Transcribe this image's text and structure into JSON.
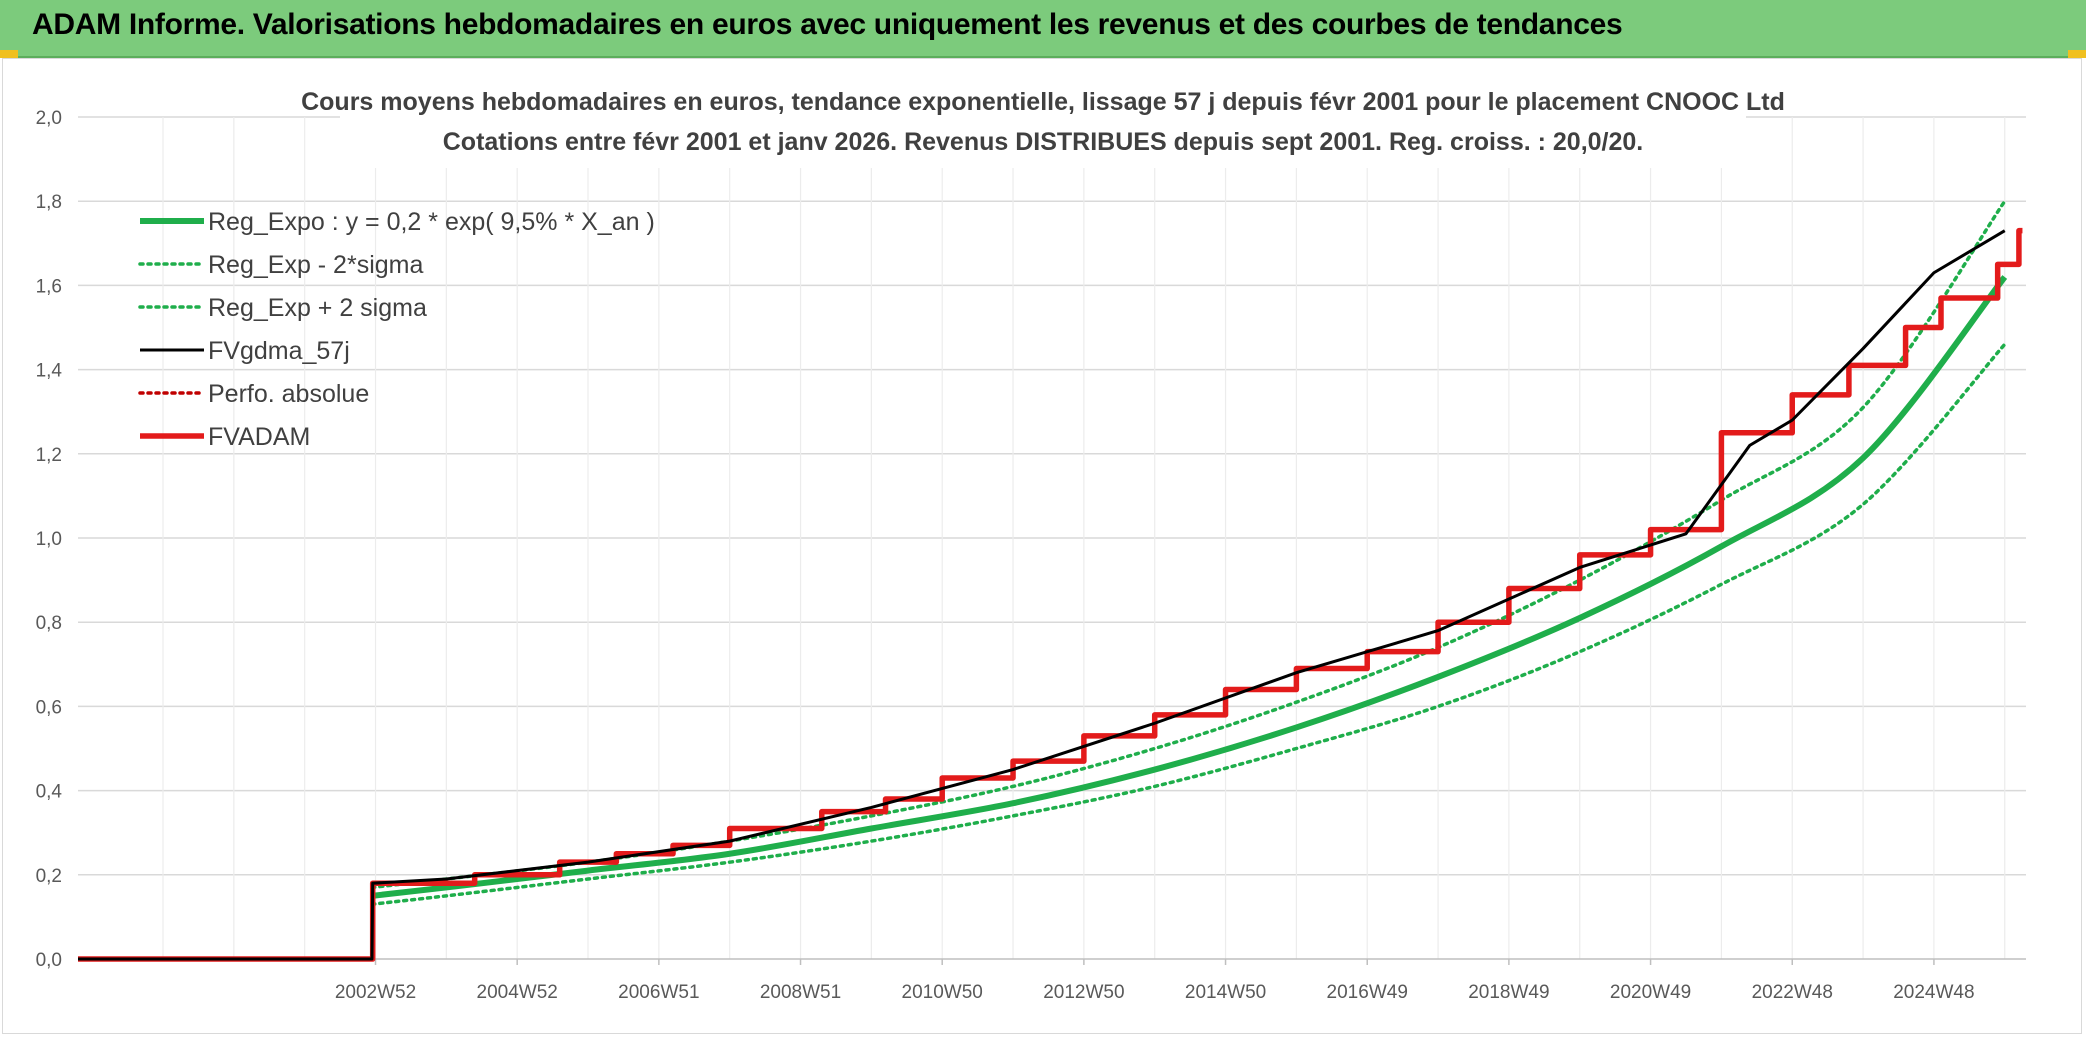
{
  "header": {
    "title": "ADAM Informe. Valorisations hebdomadaires en euros avec uniquement les revenus et des courbes de tendances"
  },
  "colors": {
    "banner": "#7ccb7c",
    "reg": "#1fae4b",
    "fv": "#000000",
    "adam": "#e31b1b",
    "perfo": "#c00000",
    "grid": "#d9d9d9"
  },
  "chart_data": {
    "type": "line",
    "title": "Cours moyens hebdomadaires en euros, tendance exponentielle, lissage 57 j depuis févr 2001 pour le placement CNOOC Ltd",
    "subtitle": "Cotations entre févr 2001 et janv 2026. Revenus DISTRIBUES depuis sept 2001. Reg. croiss. : 20,0/20.",
    "xlabel": "",
    "ylabel": "",
    "ylim": [
      0,
      2.0
    ],
    "xlim": [
      1998.8,
      2026.3
    ],
    "y_ticks": [
      "0,0",
      "0,2",
      "0,4",
      "0,6",
      "0,8",
      "1,0",
      "1,2",
      "1,4",
      "1,6",
      "1,8",
      "2,0"
    ],
    "y_tick_values": [
      0,
      0.2,
      0.4,
      0.6,
      0.8,
      1.0,
      1.2,
      1.4,
      1.6,
      1.8,
      2.0
    ],
    "x_ticks": [
      "2002W52",
      "2004W52",
      "2006W51",
      "2008W51",
      "2010W50",
      "2012W50",
      "2014W50",
      "2016W49",
      "2018W49",
      "2020W49",
      "2022W48",
      "2024W48"
    ],
    "x_tick_values": [
      2003.0,
      2005.0,
      2007.0,
      2009.0,
      2011.0,
      2013.0,
      2015.0,
      2017.0,
      2019.0,
      2021.0,
      2023.0,
      2025.0
    ],
    "legend_position": "top-left",
    "series": [
      {
        "name": "Reg_Expo : y = 0,2 * exp( 9,5% *  X_an )",
        "style": "solid-thick",
        "color": "#1fae4b",
        "x": [
          2002.95,
          2004.0,
          2006.0,
          2008.0,
          2010.0,
          2012.0,
          2014.0,
          2016.0,
          2018.0,
          2020.0,
          2022.0,
          2024.0,
          2026.0
        ],
        "y": [
          0.15,
          0.17,
          0.21,
          0.25,
          0.31,
          0.37,
          0.45,
          0.55,
          0.67,
          0.81,
          0.98,
          1.19,
          1.62
        ]
      },
      {
        "name": "Reg_Exp - 2*sigma",
        "style": "dotted",
        "color": "#1fae4b",
        "x": [
          2002.95,
          2004.0,
          2006.0,
          2008.0,
          2010.0,
          2012.0,
          2014.0,
          2016.0,
          2018.0,
          2020.0,
          2022.0,
          2024.0,
          2026.0
        ],
        "y": [
          0.13,
          0.15,
          0.19,
          0.23,
          0.28,
          0.34,
          0.41,
          0.5,
          0.6,
          0.73,
          0.89,
          1.08,
          1.46
        ]
      },
      {
        "name": "Reg_Exp + 2 sigma",
        "style": "dotted",
        "color": "#1fae4b",
        "x": [
          2002.95,
          2004.0,
          2006.0,
          2008.0,
          2010.0,
          2012.0,
          2014.0,
          2016.0,
          2018.0,
          2020.0,
          2022.0,
          2024.0,
          2026.0
        ],
        "y": [
          0.17,
          0.19,
          0.23,
          0.28,
          0.34,
          0.41,
          0.5,
          0.61,
          0.74,
          0.9,
          1.09,
          1.31,
          1.8
        ]
      },
      {
        "name": "FVgdma_57j",
        "style": "solid",
        "color": "#000000",
        "x": [
          1998.8,
          2002.95,
          2002.96,
          2004.0,
          2006.0,
          2008.0,
          2010.0,
          2012.0,
          2014.0,
          2016.0,
          2018.0,
          2020.0,
          2021.5,
          2022.4,
          2023.0,
          2024.0,
          2025.0,
          2026.0
        ],
        "y": [
          0,
          0,
          0.18,
          0.19,
          0.23,
          0.28,
          0.36,
          0.45,
          0.56,
          0.68,
          0.78,
          0.93,
          1.01,
          1.22,
          1.28,
          1.45,
          1.63,
          1.73
        ]
      },
      {
        "name": "Perfo. absolue",
        "style": "dotted",
        "color": "#c00000",
        "x": [],
        "y": []
      },
      {
        "name": "FVADAM",
        "style": "solid-thick",
        "color": "#e31b1b",
        "x": [
          1998.8,
          2002.95,
          2002.96,
          2004.4,
          2005.6,
          2006.4,
          2007.2,
          2008.0,
          2009.3,
          2010.2,
          2011.0,
          2012.0,
          2013.0,
          2014.0,
          2015.0,
          2016.0,
          2017.0,
          2018.0,
          2019.0,
          2020.0,
          2021.0,
          2022.0,
          2023.0,
          2023.8,
          2024.6,
          2025.1,
          2025.9,
          2026.2
        ],
        "y": [
          0,
          0,
          0.18,
          0.2,
          0.23,
          0.25,
          0.27,
          0.31,
          0.35,
          0.38,
          0.43,
          0.47,
          0.53,
          0.58,
          0.64,
          0.69,
          0.73,
          0.8,
          0.88,
          0.96,
          1.02,
          1.25,
          1.34,
          1.41,
          1.5,
          1.57,
          1.65,
          1.73
        ]
      }
    ]
  }
}
